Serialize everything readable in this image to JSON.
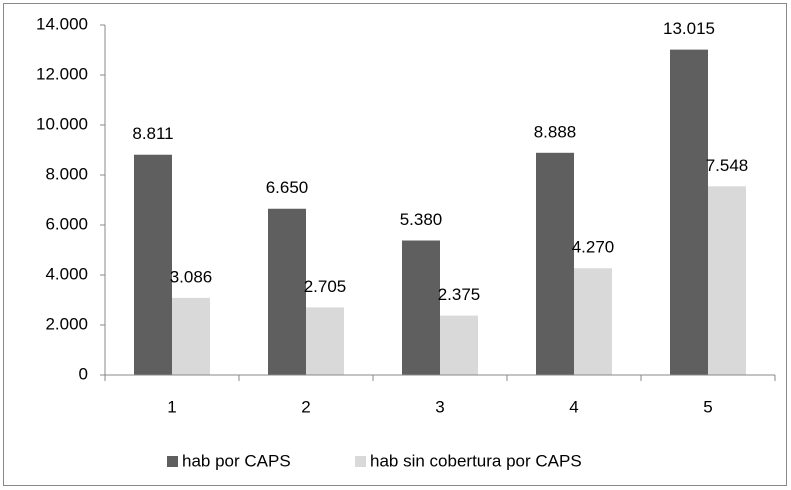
{
  "chart_data": {
    "type": "bar",
    "categories": [
      "1",
      "2",
      "3",
      "4",
      "5"
    ],
    "series": [
      {
        "name": "hab por CAPS",
        "color": "#5f5f5f",
        "values": [
          8811,
          6650,
          5380,
          8888,
          13015
        ],
        "value_labels": [
          "8.811",
          "6.650",
          "5.380",
          "8.888",
          "13.015"
        ]
      },
      {
        "name": "hab sin cobertura por CAPS",
        "color": "#d9d9d9",
        "values": [
          3086,
          2705,
          2375,
          4270,
          7548
        ],
        "value_labels": [
          "3.086",
          "2.705",
          "2.375",
          "4.270",
          "7.548"
        ]
      }
    ],
    "ylim": [
      0,
      14000
    ],
    "yticks": [
      0,
      {
        "value": 2000,
        "label": "2.000"
      },
      {
        "value": 4000,
        "label": "4.000"
      },
      {
        "value": 6000,
        "label": "6.000"
      },
      {
        "value": 8000,
        "label": "8.000"
      },
      {
        "value": 10000,
        "label": "10.000"
      },
      {
        "value": 12000,
        "label": "12.000"
      },
      {
        "value": 14000,
        "label": "14.000"
      }
    ],
    "legend": "bottom"
  }
}
